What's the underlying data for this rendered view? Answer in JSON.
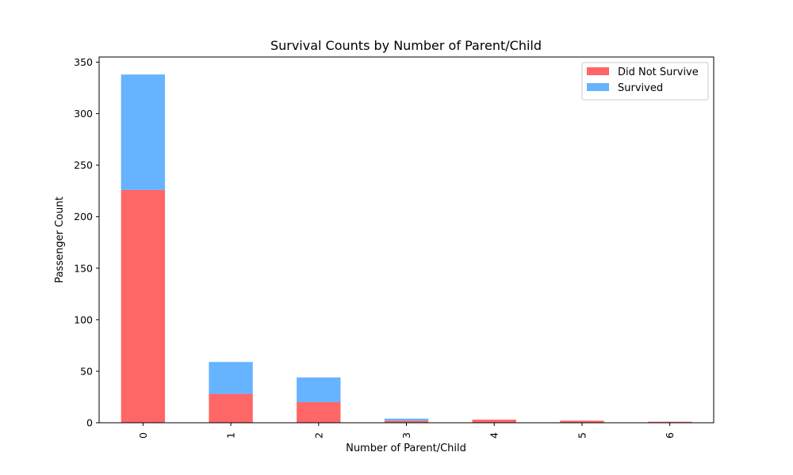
{
  "chart_data": {
    "type": "bar",
    "stacked": true,
    "title": "Survival Counts by Number of Parent/Child",
    "xlabel": "Number of Parent/Child",
    "ylabel": "Passenger Count",
    "categories": [
      "0",
      "1",
      "2",
      "3",
      "4",
      "5",
      "6"
    ],
    "series": [
      {
        "name": "Did Not Survive",
        "color": "#ff6666",
        "values": [
          226,
          28,
          20,
          2,
          3,
          2,
          1
        ]
      },
      {
        "name": "Survived",
        "color": "#66b3ff",
        "values": [
          112,
          31,
          24,
          2,
          0,
          0,
          0
        ]
      }
    ],
    "ylim": [
      0,
      355
    ],
    "yticks": [
      0,
      50,
      100,
      150,
      200,
      250,
      300,
      350
    ],
    "grid": false,
    "legend_position": "top-right"
  }
}
